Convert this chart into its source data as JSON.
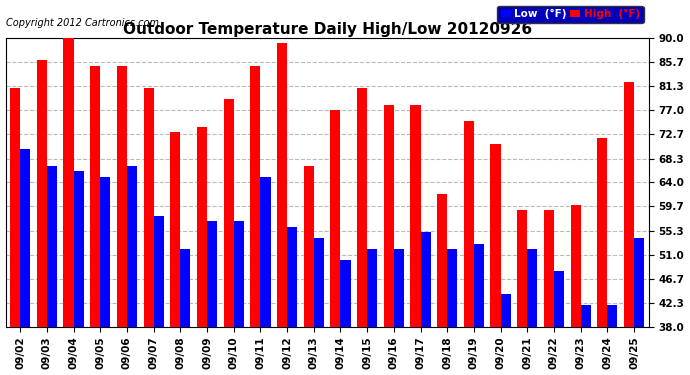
{
  "title": "Outdoor Temperature Daily High/Low 20120926",
  "copyright": "Copyright 2012 Cartronics.com",
  "categories": [
    "09/02",
    "09/03",
    "09/04",
    "09/05",
    "09/06",
    "09/07",
    "09/08",
    "09/09",
    "09/10",
    "09/11",
    "09/12",
    "09/13",
    "09/14",
    "09/15",
    "09/16",
    "09/17",
    "09/18",
    "09/19",
    "09/20",
    "09/21",
    "09/22",
    "09/23",
    "09/24",
    "09/25"
  ],
  "high": [
    81,
    86,
    90,
    85,
    85,
    81,
    73,
    74,
    79,
    85,
    89,
    67,
    77,
    81,
    78,
    78,
    62,
    75,
    71,
    59,
    59,
    60,
    72,
    82
  ],
  "low": [
    70,
    67,
    66,
    65,
    67,
    58,
    52,
    57,
    57,
    65,
    56,
    54,
    50,
    52,
    52,
    55,
    52,
    53,
    44,
    52,
    48,
    42,
    42,
    54
  ],
  "high_color": "#ff0000",
  "low_color": "#0000ff",
  "ylim": [
    38.0,
    90.0
  ],
  "yticks": [
    38.0,
    42.3,
    46.7,
    51.0,
    55.3,
    59.7,
    64.0,
    68.3,
    72.7,
    77.0,
    81.3,
    85.7,
    90.0
  ],
  "background_color": "#ffffff",
  "grid_color": "#bbbbbb",
  "title_fontsize": 11,
  "tick_fontsize": 7.5,
  "copyright_fontsize": 7,
  "legend_fontsize": 7.5,
  "bar_width": 0.38,
  "figsize": [
    6.9,
    3.75
  ],
  "dpi": 100
}
